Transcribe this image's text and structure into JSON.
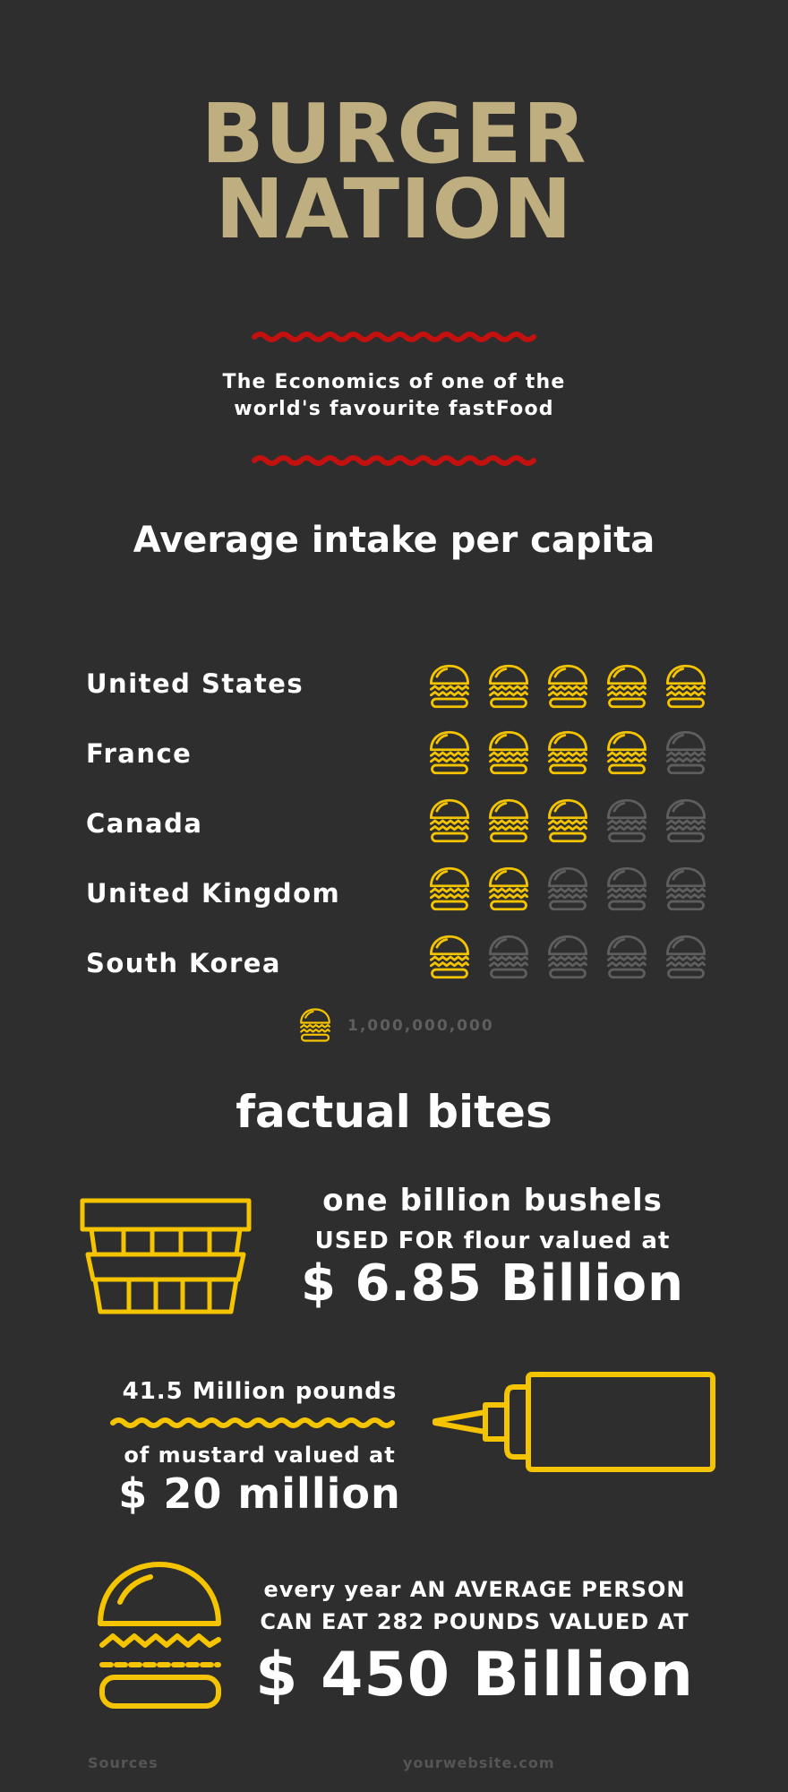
{
  "header": {
    "title_line1": "BURGER",
    "title_line2": "NATION",
    "subtitle_line1": "The Economics of one of the",
    "subtitle_line2": "world's favourite fastFood"
  },
  "intake": {
    "title": "Average intake per capita",
    "total_icons": 5,
    "rows": [
      {
        "country": "United States",
        "filled": 5
      },
      {
        "country": "France",
        "filled": 4
      },
      {
        "country": "Canada",
        "filled": 3
      },
      {
        "country": "United Kingdom",
        "filled": 2
      },
      {
        "country": "South Korea",
        "filled": 1
      }
    ],
    "legend_value": "1,000,000,000"
  },
  "facts": {
    "title": "factual bites",
    "fact1": {
      "line1": "one billion bushels",
      "line2": "USED FOR flour valued at",
      "value": "$ 6.85 Billion"
    },
    "fact2": {
      "line1": "41.5 Million pounds",
      "line2": "of mustard valued at",
      "value": "$ 20 million"
    },
    "fact3": {
      "line1": "every year AN AVERAGE PERSON",
      "line2": "CAN EAT 282 POUNDS VALUED AT",
      "value": "$ 450 Billion"
    }
  },
  "footer": {
    "sources": "Sources",
    "website": "yourwebsite.com"
  },
  "colors": {
    "background": "#2e2e2e",
    "title": "#bfae7f",
    "accent_red": "#c2110f",
    "accent_yellow": "#f5c400",
    "muted_icon": "#5e5e5e",
    "footer_text": "#555555"
  }
}
